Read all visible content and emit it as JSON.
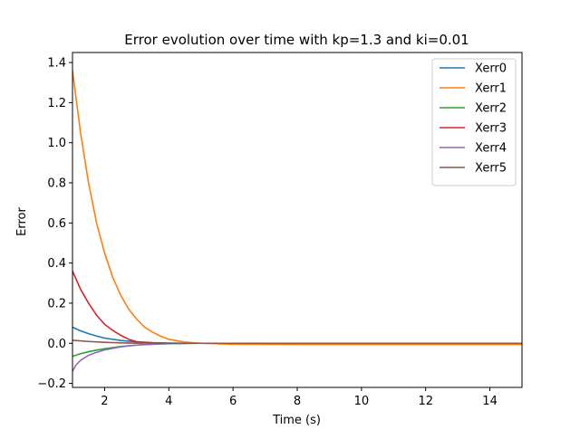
{
  "chart_data": {
    "type": "line",
    "title": "Error evolution over time with kp=1.3 and ki=0.01",
    "xlabel": "Time (s)",
    "ylabel": "Error",
    "xlim": [
      1,
      15
    ],
    "ylim": [
      -0.22,
      1.45
    ],
    "xticks": [
      2,
      4,
      6,
      8,
      10,
      12,
      14
    ],
    "yticks": [
      -0.2,
      0.0,
      0.2,
      0.4,
      0.6,
      0.8,
      1.0,
      1.2,
      1.4
    ],
    "xtick_labels": [
      "2",
      "4",
      "6",
      "8",
      "10",
      "12",
      "14"
    ],
    "ytick_labels": [
      "−0.2",
      "0.0",
      "0.2",
      "0.4",
      "0.6",
      "0.8",
      "1.0",
      "1.2",
      "1.4"
    ],
    "grid": false,
    "legend_position": "top-right",
    "series": [
      {
        "name": "Xerr0",
        "color": "#1f77b4",
        "x": [
          1.0,
          1.25,
          1.5,
          1.75,
          2.0,
          2.5,
          3.0,
          3.5,
          4.0,
          5.0,
          6.0,
          8.0,
          10.0,
          12.0,
          15.0
        ],
        "y": [
          0.08,
          0.062,
          0.048,
          0.036,
          0.026,
          0.014,
          0.007,
          0.003,
          0.001,
          0.0,
          0.0,
          0.0,
          0.0,
          0.0,
          0.0
        ]
      },
      {
        "name": "Xerr1",
        "color": "#ff7f0e",
        "x": [
          1.0,
          1.25,
          1.5,
          1.75,
          2.0,
          2.25,
          2.5,
          2.75,
          3.0,
          3.25,
          3.5,
          3.75,
          4.0,
          4.5,
          5.0,
          6.0,
          8.0,
          10.0,
          12.0,
          15.0
        ],
        "y": [
          1.36,
          1.05,
          0.8,
          0.6,
          0.45,
          0.33,
          0.24,
          0.17,
          0.12,
          0.08,
          0.055,
          0.035,
          0.02,
          0.006,
          0.0,
          -0.005,
          -0.006,
          -0.006,
          -0.006,
          -0.006
        ]
      },
      {
        "name": "Xerr2",
        "color": "#2ca02c",
        "x": [
          1.0,
          1.25,
          1.5,
          1.75,
          2.0,
          2.5,
          3.0,
          3.5,
          4.0,
          5.0,
          6.0,
          8.0,
          10.0,
          12.0,
          15.0
        ],
        "y": [
          -0.065,
          -0.052,
          -0.042,
          -0.034,
          -0.027,
          -0.016,
          -0.009,
          -0.005,
          -0.002,
          0.0,
          0.0,
          0.0,
          0.0,
          0.0,
          0.0
        ]
      },
      {
        "name": "Xerr3",
        "color": "#d62728",
        "x": [
          1.0,
          1.25,
          1.5,
          1.75,
          2.0,
          2.25,
          2.5,
          2.75,
          3.0,
          3.5,
          4.0,
          5.0,
          6.0,
          8.0,
          10.0,
          12.0,
          15.0
        ],
        "y": [
          0.36,
          0.27,
          0.2,
          0.14,
          0.095,
          0.065,
          0.04,
          0.02,
          0.008,
          0.001,
          0.0,
          0.0,
          0.0,
          0.0,
          0.0,
          0.0,
          0.0
        ]
      },
      {
        "name": "Xerr4",
        "color": "#9467bd",
        "x": [
          1.0,
          1.1,
          1.25,
          1.5,
          1.75,
          2.0,
          2.5,
          3.0,
          3.5,
          4.0,
          5.0,
          6.0,
          8.0,
          10.0,
          12.0,
          15.0
        ],
        "y": [
          -0.14,
          -0.11,
          -0.085,
          -0.06,
          -0.045,
          -0.033,
          -0.018,
          -0.009,
          -0.004,
          -0.001,
          0.0,
          0.0,
          0.0,
          0.0,
          0.0,
          0.0
        ]
      },
      {
        "name": "Xerr5",
        "color": "#8c564b",
        "x": [
          1.0,
          1.5,
          2.0,
          2.5,
          3.0,
          4.0,
          5.0,
          6.0,
          8.0,
          10.0,
          12.0,
          15.0
        ],
        "y": [
          0.015,
          0.009,
          0.005,
          0.002,
          0.001,
          0.0,
          0.0,
          0.0,
          0.0,
          0.0,
          0.0,
          0.0
        ]
      }
    ]
  }
}
